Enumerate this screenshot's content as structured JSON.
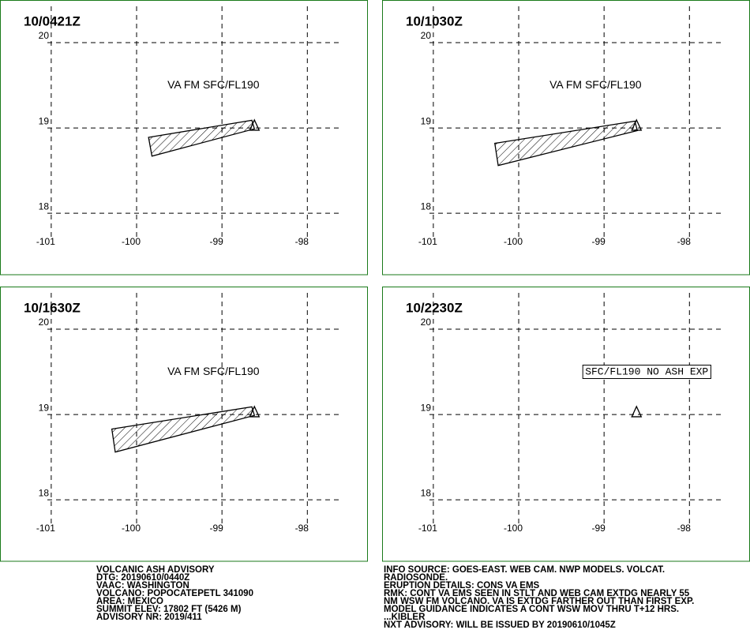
{
  "axes": {
    "xlim": [
      -101.6,
      -97.3
    ],
    "ylim": [
      17.28,
      20.5
    ],
    "xticks": [
      -101,
      -100,
      -99,
      -98
    ],
    "yticks": [
      18,
      19,
      20
    ]
  },
  "volcano": {
    "lon": -98.62,
    "lat": 19.02
  },
  "panels": [
    {
      "time": "10/0421Z",
      "annotation": "VA FM SFC/FL190",
      "annotation_lon": -99.1,
      "annotation_lat": 19.5,
      "polygon": {
        "lon": [
          -99.86,
          -98.65,
          -98.62,
          -99.82
        ],
        "lat": [
          18.89,
          19.09,
          18.99,
          18.67
        ]
      }
    },
    {
      "time": "10/1030Z",
      "annotation": "VA FM SFC/FL190",
      "annotation_lon": -99.1,
      "annotation_lat": 19.5,
      "polygon": {
        "lon": [
          -100.28,
          -98.64,
          -98.61,
          -100.24
        ],
        "lat": [
          18.82,
          19.08,
          18.97,
          18.56
        ]
      }
    },
    {
      "time": "10/1630Z",
      "annotation": "VA FM SFC/FL190",
      "annotation_lon": -99.1,
      "annotation_lat": 19.5,
      "polygon": {
        "lon": [
          -100.29,
          -98.65,
          -98.62,
          -100.25
        ],
        "lat": [
          18.83,
          19.09,
          18.99,
          18.56
        ]
      }
    },
    {
      "time": "10/2230Z",
      "annotation": "SFC/FL190 NO ASH EXP",
      "annotation_lon": -98.5,
      "annotation_lat": 19.5,
      "boxed": true
    }
  ],
  "advisory_left": [
    "VOLCANIC ASH ADVISORY",
    "DTG: 20190610/0440Z",
    "VAAC: WASHINGTON",
    "VOLCANO: POPOCATEPETL 341090",
    "AREA: MEXICO",
    "SUMMIT ELEV: 17802 FT (5426 M)",
    "ADVISORY NR: 2019/411"
  ],
  "advisory_right": [
    "INFO SOURCE: GOES-EAST. WEB CAM. NWP MODELS. VOLCAT.",
    "RADIOSONDE.",
    "ERUPTION DETAILS: CONS VA EMS",
    "RMK: CONT VA EMS SEEN IN STLT AND WEB CAM EXTDG NEARLY 55",
    "NM WSW FM VOLCANO. VA IS EXTDG FARTHER OUT THAN FIRST EXP.",
    "MODEL GUIDANCE INDICATES A CONT WSW MOV THRU T+12 HRS.",
    "...KIBLER",
    "NXT ADVISORY: WILL BE ISSUED BY 20190610/1045Z"
  ]
}
